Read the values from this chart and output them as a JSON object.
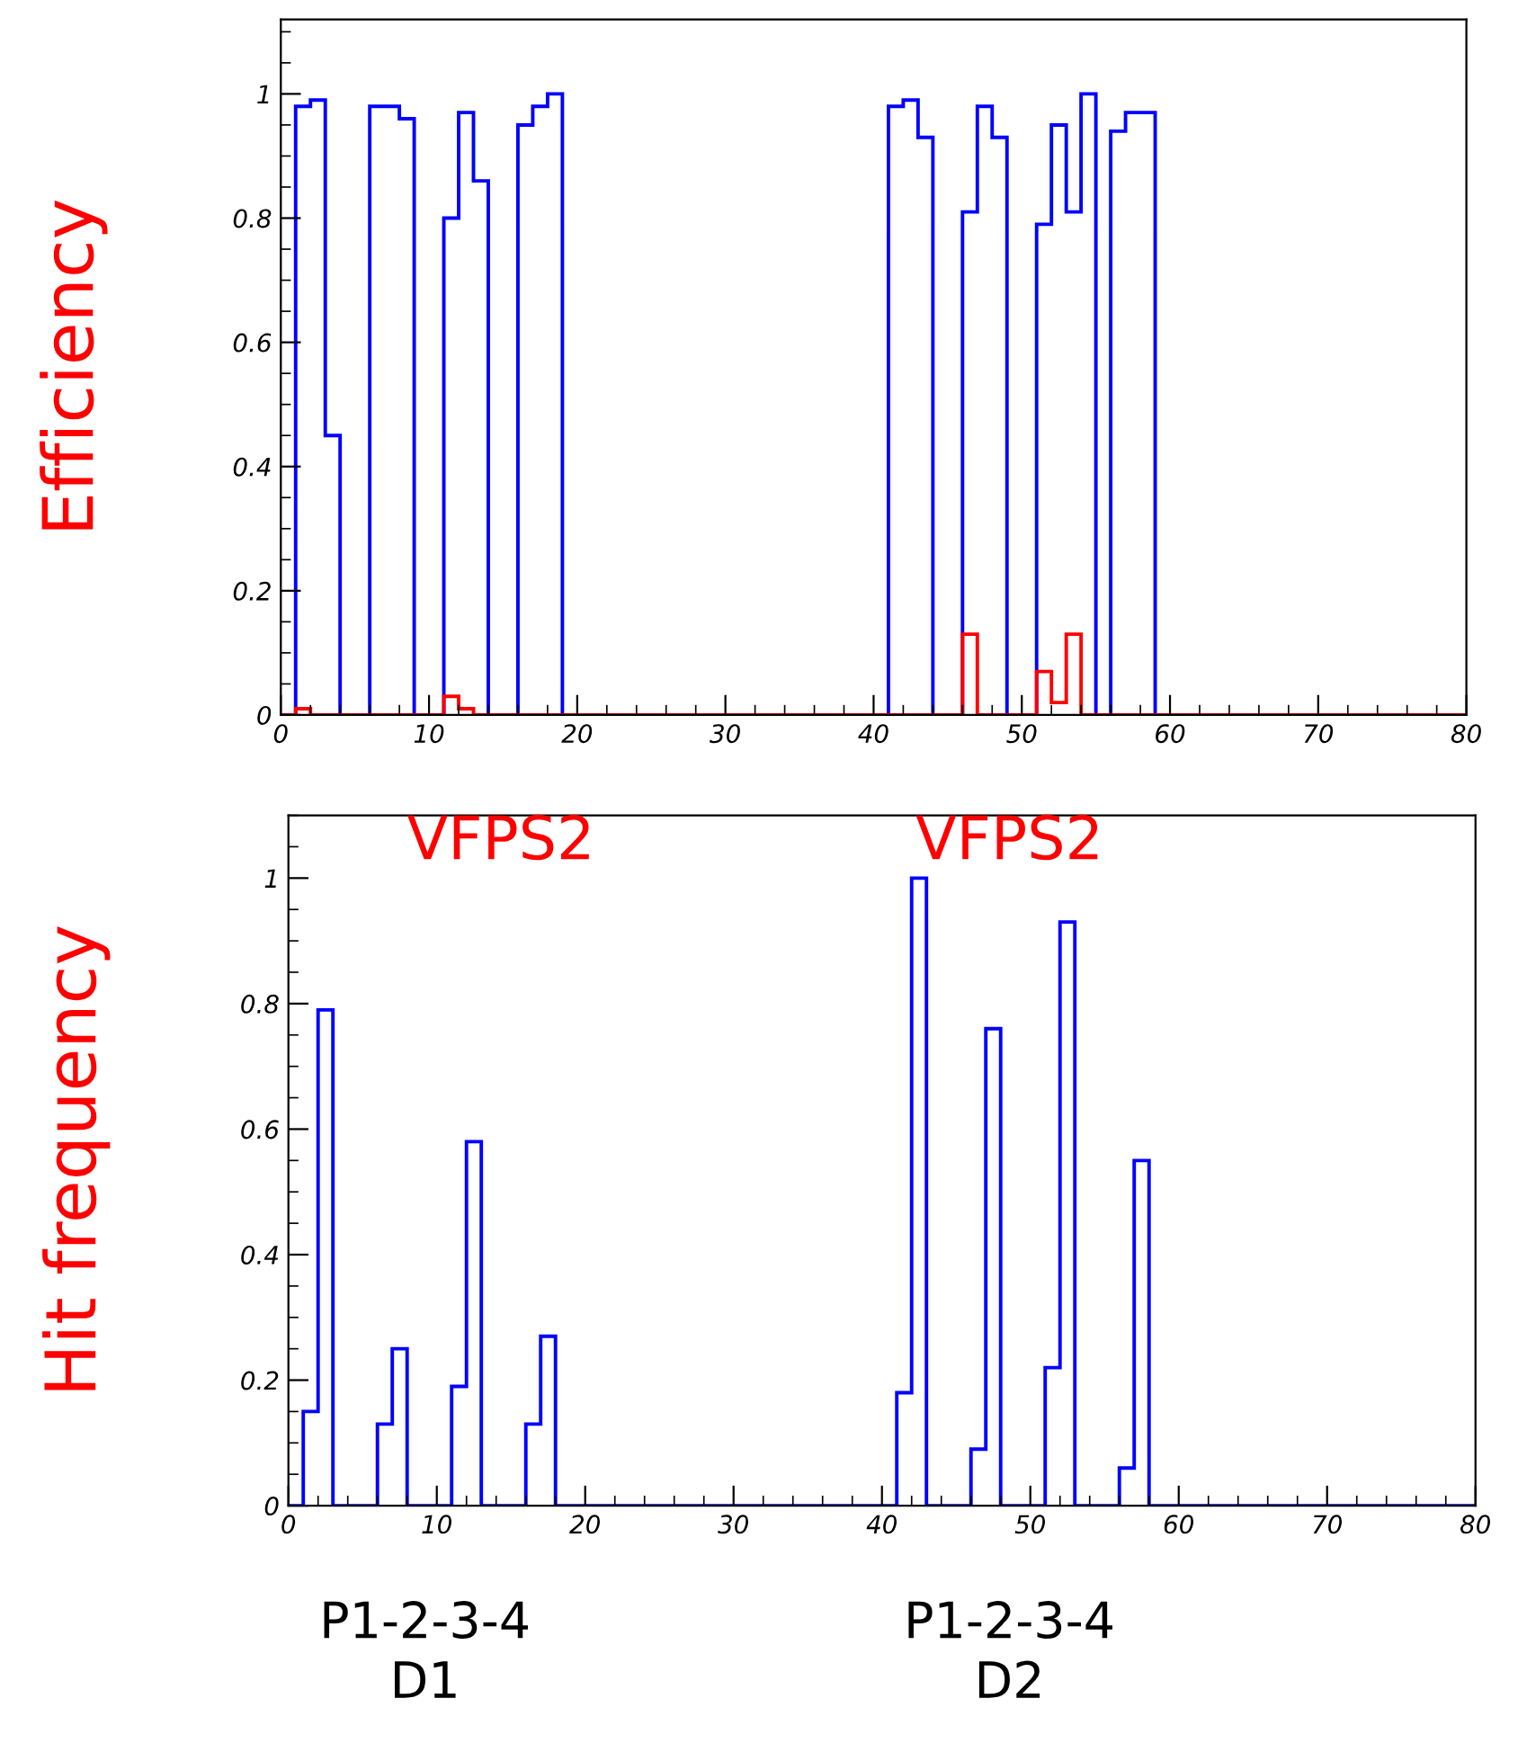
{
  "chart_data": [
    {
      "type": "histogram",
      "ylabel": "Efficiency",
      "bins": [
        0,
        1,
        2,
        3,
        4,
        5,
        6,
        7,
        8,
        9,
        10,
        11,
        12,
        13,
        14,
        15,
        16,
        17,
        18,
        19,
        20,
        21,
        22,
        23,
        24,
        25,
        26,
        27,
        28,
        29,
        30,
        31,
        32,
        33,
        34,
        35,
        36,
        37,
        38,
        39,
        40,
        41,
        42,
        43,
        44,
        45,
        46,
        47,
        48,
        49,
        50,
        51,
        52,
        53,
        54,
        55,
        56,
        57,
        58,
        59,
        60,
        61,
        62,
        63,
        64,
        65,
        66,
        67,
        68,
        69,
        70,
        71,
        72,
        73,
        74,
        75,
        76,
        77,
        78,
        79,
        80
      ],
      "series": [
        {
          "color": "#0000ff",
          "values": [
            0,
            0.98,
            0.99,
            0.45,
            0,
            0,
            0.98,
            0.98,
            0.96,
            0,
            0,
            0.8,
            0.97,
            0.86,
            0,
            0,
            0.95,
            0.98,
            1.0,
            0,
            0,
            0,
            0,
            0,
            0,
            0,
            0,
            0,
            0,
            0,
            0,
            0,
            0,
            0,
            0,
            0,
            0,
            0,
            0,
            0,
            0,
            0.98,
            0.99,
            0.93,
            0,
            0,
            0.81,
            0.98,
            0.93,
            0,
            0,
            0.79,
            0.95,
            0.81,
            1.0,
            0,
            0.94,
            0.97,
            0.97,
            0,
            0,
            0,
            0,
            0,
            0,
            0,
            0,
            0,
            0,
            0,
            0,
            0,
            0,
            0,
            0,
            0,
            0,
            0,
            0,
            0
          ]
        },
        {
          "color": "#ff0000",
          "values": [
            0,
            0.01,
            0,
            0,
            0,
            0,
            0,
            0,
            0,
            0,
            0,
            0.03,
            0.01,
            0,
            0,
            0,
            0,
            0,
            0,
            0,
            0,
            0,
            0,
            0,
            0,
            0,
            0,
            0,
            0,
            0,
            0,
            0,
            0,
            0,
            0,
            0,
            0,
            0,
            0,
            0,
            0,
            0,
            0,
            0,
            0,
            0,
            0.13,
            0,
            0,
            0,
            0,
            0.07,
            0.02,
            0.13,
            0,
            0,
            0,
            0,
            0,
            0,
            0,
            0,
            0,
            0,
            0,
            0,
            0,
            0,
            0,
            0,
            0,
            0,
            0,
            0,
            0,
            0,
            0,
            0,
            0,
            0
          ]
        }
      ],
      "xlim": [
        0,
        80
      ],
      "ylim": [
        0,
        1.12
      ],
      "xticks": [
        0,
        10,
        20,
        30,
        40,
        50,
        60,
        70,
        80
      ],
      "yticks": [
        0,
        0.2,
        0.4,
        0.6,
        0.8,
        1
      ]
    },
    {
      "type": "histogram",
      "ylabel": "Hit frequency",
      "bins": [
        0,
        1,
        2,
        3,
        4,
        5,
        6,
        7,
        8,
        9,
        10,
        11,
        12,
        13,
        14,
        15,
        16,
        17,
        18,
        19,
        20,
        21,
        22,
        23,
        24,
        25,
        26,
        27,
        28,
        29,
        30,
        31,
        32,
        33,
        34,
        35,
        36,
        37,
        38,
        39,
        40,
        41,
        42,
        43,
        44,
        45,
        46,
        47,
        48,
        49,
        50,
        51,
        52,
        53,
        54,
        55,
        56,
        57,
        58,
        59,
        60,
        61,
        62,
        63,
        64,
        65,
        66,
        67,
        68,
        69,
        70,
        71,
        72,
        73,
        74,
        75,
        76,
        77,
        78,
        79,
        80
      ],
      "series": [
        {
          "color": "#0000ff",
          "values": [
            0,
            0.15,
            0.79,
            0,
            0,
            0,
            0.13,
            0.25,
            0,
            0,
            0,
            0.19,
            0.58,
            0,
            0,
            0,
            0.13,
            0.27,
            0,
            0,
            0,
            0,
            0,
            0,
            0,
            0,
            0,
            0,
            0,
            0,
            0,
            0,
            0,
            0,
            0,
            0,
            0,
            0,
            0,
            0,
            0,
            0.18,
            1.0,
            0,
            0,
            0,
            0.09,
            0.76,
            0,
            0,
            0,
            0.22,
            0.93,
            0,
            0,
            0,
            0.06,
            0.55,
            0,
            0,
            0,
            0,
            0,
            0,
            0,
            0,
            0,
            0,
            0,
            0,
            0,
            0,
            0,
            0,
            0,
            0,
            0,
            0,
            0,
            0
          ]
        }
      ],
      "xlim": [
        0,
        80
      ],
      "ylim": [
        0,
        1.1
      ],
      "xticks": [
        0,
        10,
        20,
        30,
        40,
        50,
        60,
        70,
        80
      ],
      "yticks": [
        0,
        0.2,
        0.4,
        0.6,
        0.8,
        1
      ],
      "annotations": [
        "VFPS2",
        "VFPS2",
        "P1-2-3-4\nD1",
        "P1-2-3-4\nD2"
      ]
    }
  ]
}
